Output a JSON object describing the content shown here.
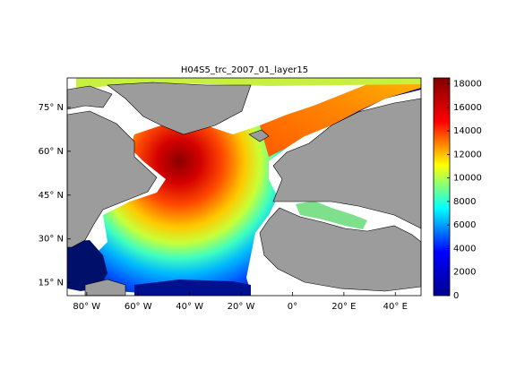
{
  "title": "H04S5_trc_2007_01_layer15",
  "map": {
    "xlim": [
      -87.6,
      50
    ],
    "ylim": [
      10.6,
      85.1
    ],
    "xticks": [
      {
        "value": -80,
        "label": "80° W"
      },
      {
        "value": -60,
        "label": "60° W"
      },
      {
        "value": -40,
        "label": "40° W"
      },
      {
        "value": -20,
        "label": "20° W"
      },
      {
        "value": 0,
        "label": "0°"
      },
      {
        "value": 20,
        "label": "20° E"
      },
      {
        "value": 40,
        "label": "40° E"
      }
    ],
    "yticks": [
      {
        "value": 15,
        "label": "15° N"
      },
      {
        "value": 30,
        "label": "30° N"
      },
      {
        "value": 45,
        "label": "45° N"
      },
      {
        "value": 60,
        "label": "60° N"
      },
      {
        "value": 75,
        "label": "75° N"
      }
    ]
  },
  "colorbar": {
    "clim": [
      0,
      18500
    ],
    "ticks": [
      0,
      2000,
      4000,
      6000,
      8000,
      10000,
      12000,
      14000,
      16000,
      18000
    ],
    "colormap": [
      "#00008f",
      "#0000ff",
      "#00ffff",
      "#ffff00",
      "#ff0000",
      "#800000"
    ]
  }
}
